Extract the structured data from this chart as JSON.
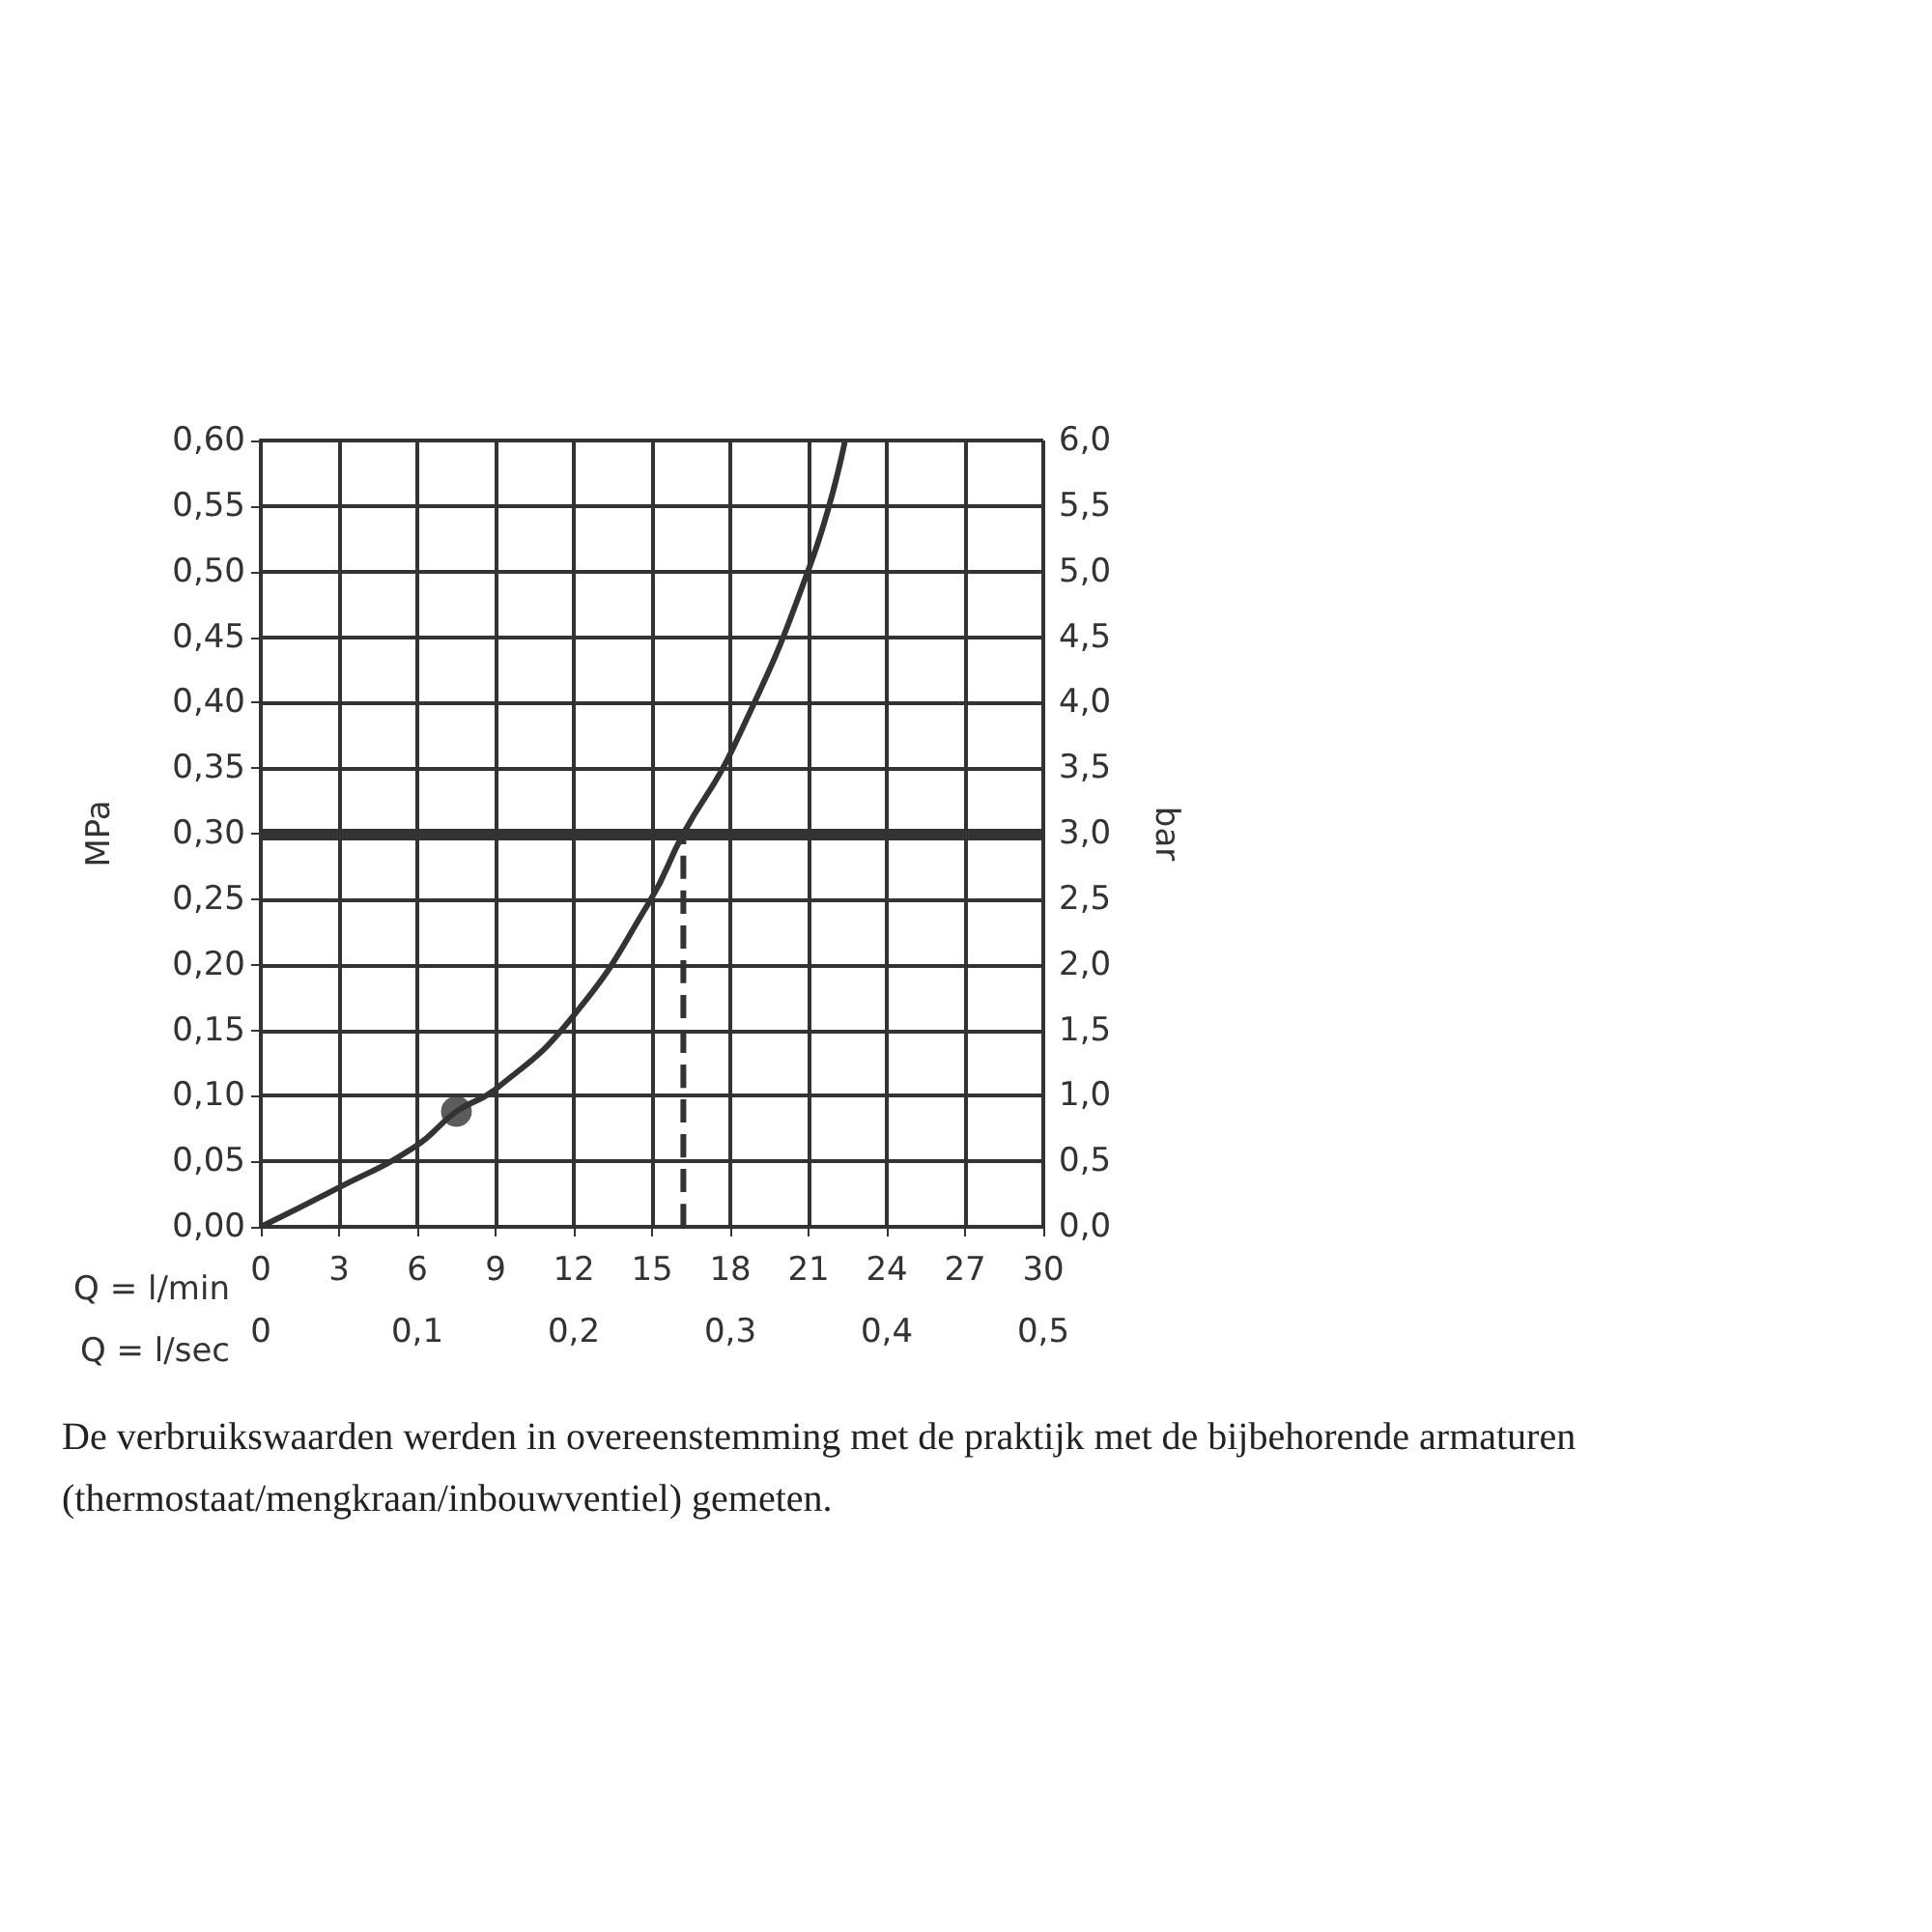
{
  "chart_data": {
    "type": "line",
    "xlabel": "Q = l/min",
    "x2label": "Q = l/sec",
    "ylabel": "MPa",
    "y2label": "bar",
    "xlim": [
      0,
      30
    ],
    "xticks": [
      0,
      3,
      6,
      9,
      12,
      15,
      18,
      21,
      24,
      27,
      30
    ],
    "x2lim": [
      0,
      0.5
    ],
    "x2ticks": [
      0,
      {
        "value": 0.1,
        "label": "0,1"
      },
      {
        "value": 0.2,
        "label": "0,2"
      },
      {
        "value": 0.3,
        "label": "0,3"
      },
      {
        "value": 0.4,
        "label": "0,4"
      },
      {
        "value": 0.5,
        "label": "0,5"
      }
    ],
    "ylim": [
      0,
      0.6
    ],
    "yticks": [
      {
        "value": 0,
        "label": "0,00"
      },
      {
        "value": 0.05,
        "label": "0,05"
      },
      {
        "value": 0.1,
        "label": "0,10"
      },
      {
        "value": 0.15,
        "label": "0,15"
      },
      {
        "value": 0.2,
        "label": "0,20"
      },
      {
        "value": 0.25,
        "label": "0,25"
      },
      {
        "value": 0.3,
        "label": "0,30"
      },
      {
        "value": 0.35,
        "label": "0,35"
      },
      {
        "value": 0.4,
        "label": "0,40"
      },
      {
        "value": 0.45,
        "label": "0,45"
      },
      {
        "value": 0.5,
        "label": "0,50"
      },
      {
        "value": 0.55,
        "label": "0,55"
      },
      {
        "value": 0.6,
        "label": "0,60"
      }
    ],
    "y2lim": [
      0,
      6
    ],
    "y2ticks": [
      {
        "value": 0,
        "label": "0,0"
      },
      {
        "value": 0.5,
        "label": "0,5"
      },
      {
        "value": 1,
        "label": "1,0"
      },
      {
        "value": 1.5,
        "label": "1,5"
      },
      {
        "value": 2,
        "label": "2,0"
      },
      {
        "value": 2.5,
        "label": "2,5"
      },
      {
        "value": 3,
        "label": "3,0"
      },
      {
        "value": 3.5,
        "label": "3,5"
      },
      {
        "value": 4,
        "label": "4,0"
      },
      {
        "value": 4.5,
        "label": "4,5"
      },
      {
        "value": 5,
        "label": "5,0"
      },
      {
        "value": 5.5,
        "label": "5,5"
      },
      {
        "value": 6,
        "label": "6,0"
      }
    ],
    "grid": true,
    "series": [
      {
        "color": "#333333",
        "line_style": "solid",
        "x": [
          0,
          2.9,
          5.9,
          7.5,
          9,
          11.9,
          14.9,
          16.2,
          18.1,
          21.1,
          22.4
        ],
        "values": [
          0,
          0.029,
          0.061,
          0.088,
          0.105,
          0.159,
          0.248,
          0.3,
          0.365,
          0.507,
          0.6
        ]
      },
      {
        "type": "scatter",
        "color": "#333333",
        "marker": "circle",
        "x": [
          7.5
        ],
        "values": [
          0.088
        ]
      },
      {
        "color": "#333333",
        "line_style": "dashed",
        "x": [
          16.2,
          16.2
        ],
        "values": [
          0,
          0.3
        ]
      }
    ],
    "ref_lines": [
      {
        "axis": "y",
        "value": 0.3,
        "color": "#333333"
      }
    ],
    "annotations": [
      "De verbruikswaarden werden in overeenstemming met de praktijk met de bijbehorende armaturen (thermostaat/mengkraan/inbouwventiel) gemeten."
    ]
  }
}
